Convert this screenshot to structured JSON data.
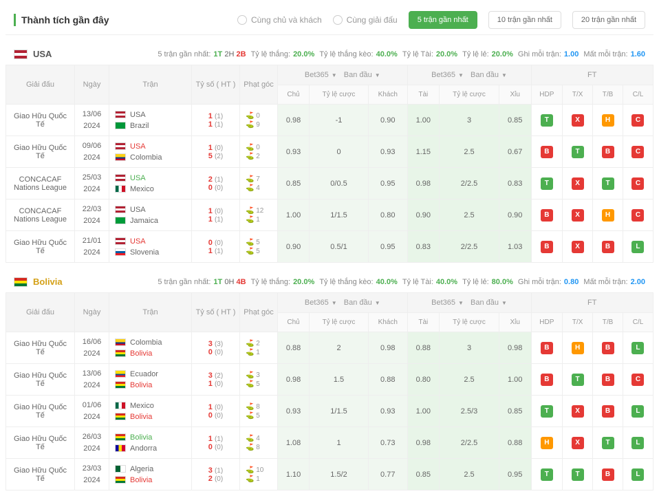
{
  "header": {
    "title": "Thành tích gần đây",
    "filter1": "Cùng chủ và khách",
    "filter2": "Cùng giải đấu",
    "tab1": "5 trận gần nhất",
    "tab2": "10 trận gần nhất",
    "tab3": "20 trận gần nhất"
  },
  "cols": {
    "league": "Giải đấu",
    "date": "Ngày",
    "match": "Trận",
    "score": "Tỷ số ( HT )",
    "corner": "Phạt góc",
    "bet365": "Bet365",
    "initial": "Ban đầu",
    "home": "Chủ",
    "odds": "Tỷ lệ cược",
    "away": "Khách",
    "over": "Tài",
    "under": "Xỉu",
    "ft": "FT",
    "hdp": "HDP",
    "tx": "T/X",
    "tb": "T/B",
    "cl": "C/L"
  },
  "usa": {
    "name": "USA",
    "statsLabel": "5 trận gần nhất:",
    "form": "1T 2H 2B",
    "winRate": "Tỷ lệ thắng:",
    "winVal": "20.0%",
    "oddsRate": "Tỷ lệ thắng kèo:",
    "oddsVal": "40.0%",
    "overRate": "Tỷ lệ Tài:",
    "overVal": "20.0%",
    "evenRate": "Tỷ lệ lẻ:",
    "evenVal": "20.0%",
    "goalsFor": "Ghi mỗi trận:",
    "goalsForVal": "1.00",
    "goalsAgainst": "Mất mỗi trận:",
    "goalsAgainstVal": "1.60",
    "matches": [
      {
        "league": "Giao Hữu Quốc Tế",
        "d1": "13/06",
        "d2": "2024",
        "t1": "USA",
        "t2": "Brazil",
        "t1h": "usa",
        "t2h": "",
        "s1": "1",
        "s2": "1",
        "ht1": "(1)",
        "ht2": "(1)",
        "c1": "0",
        "c2": "9",
        "b1": "0.98",
        "b2": "-1",
        "b3": "0.90",
        "b4": "1.00",
        "b5": "3",
        "b6": "0.85",
        "ft": [
          "T",
          "X",
          "H",
          "C"
        ],
        "fc": [
          "g",
          "r",
          "o",
          "r"
        ]
      },
      {
        "league": "Giao Hữu Quốc Tế",
        "d1": "09/06",
        "d2": "2024",
        "t1": "USA",
        "t2": "Colombia",
        "t1h": "usa-r",
        "t2h": "",
        "s1": "1",
        "s2": "5",
        "ht1": "(0)",
        "ht2": "(2)",
        "c1": "0",
        "c2": "2",
        "b1": "0.93",
        "b2": "0",
        "b3": "0.93",
        "b4": "1.15",
        "b5": "2.5",
        "b6": "0.67",
        "ft": [
          "B",
          "T",
          "B",
          "C"
        ],
        "fc": [
          "r",
          "g",
          "r",
          "r"
        ]
      },
      {
        "league": "CONCACAF Nations League",
        "d1": "25/03",
        "d2": "2024",
        "t1": "USA",
        "t2": "Mexico",
        "t1h": "usa-g",
        "t2h": "",
        "s1": "2",
        "s2": "0",
        "ht1": "(1)",
        "ht2": "(0)",
        "c1": "7",
        "c2": "4",
        "b1": "0.85",
        "b2": "0/0.5",
        "b3": "0.95",
        "b4": "0.98",
        "b5": "2/2.5",
        "b6": "0.83",
        "ft": [
          "T",
          "X",
          "T",
          "C"
        ],
        "fc": [
          "g",
          "r",
          "g",
          "r"
        ]
      },
      {
        "league": "CONCACAF Nations League",
        "d1": "22/03",
        "d2": "2024",
        "t1": "USA",
        "t2": "Jamaica",
        "t1h": "usa",
        "t2h": "",
        "s1": "1",
        "s2": "1",
        "ht1": "(0)",
        "ht2": "(1)",
        "c1": "12",
        "c2": "1",
        "b1": "1.00",
        "b2": "1/1.5",
        "b3": "0.80",
        "b4": "0.90",
        "b5": "2.5",
        "b6": "0.90",
        "ft": [
          "B",
          "X",
          "H",
          "C"
        ],
        "fc": [
          "r",
          "r",
          "o",
          "r"
        ]
      },
      {
        "league": "Giao Hữu Quốc Tế",
        "d1": "21/01",
        "d2": "2024",
        "t1": "USA",
        "t2": "Slovenia",
        "t1h": "usa-r",
        "t2h": "",
        "s1": "0",
        "s2": "1",
        "ht1": "(0)",
        "ht2": "(1)",
        "c1": "5",
        "c2": "5",
        "b1": "0.90",
        "b2": "0.5/1",
        "b3": "0.95",
        "b4": "0.83",
        "b5": "2/2.5",
        "b6": "1.03",
        "ft": [
          "B",
          "X",
          "B",
          "L"
        ],
        "fc": [
          "r",
          "r",
          "r",
          "g"
        ]
      }
    ]
  },
  "bolivia": {
    "name": "Bolivia",
    "statsLabel": "5 trận gần nhất:",
    "form": "1T 0H 4B",
    "winRate": "Tỷ lệ thắng:",
    "winVal": "20.0%",
    "oddsRate": "Tỷ lệ thắng kèo:",
    "oddsVal": "40.0%",
    "overRate": "Tỷ lệ Tài:",
    "overVal": "40.0%",
    "evenRate": "Tỷ lệ lẻ:",
    "evenVal": "80.0%",
    "goalsFor": "Ghi mỗi trận:",
    "goalsForVal": "0.80",
    "goalsAgainst": "Mất mỗi trận:",
    "goalsAgainstVal": "2.00",
    "matches": [
      {
        "league": "Giao Hữu Quốc Tế",
        "d1": "16/06",
        "d2": "2024",
        "t1": "Colombia",
        "t2": "Bolivia",
        "t2h": "bol",
        "s1": "3",
        "s2": "0",
        "ht1": "(3)",
        "ht2": "(0)",
        "c1": "2",
        "c2": "1",
        "b1": "0.88",
        "b2": "2",
        "b3": "0.98",
        "b4": "0.88",
        "b5": "3",
        "b6": "0.98",
        "ft": [
          "B",
          "H",
          "B",
          "L"
        ],
        "fc": [
          "r",
          "o",
          "r",
          "g"
        ]
      },
      {
        "league": "Giao Hữu Quốc Tế",
        "d1": "13/06",
        "d2": "2024",
        "t1": "Ecuador",
        "t2": "Bolivia",
        "t2h": "bol",
        "s1": "3",
        "s2": "1",
        "ht1": "(2)",
        "ht2": "(0)",
        "c1": "3",
        "c2": "5",
        "b1": "0.98",
        "b2": "1.5",
        "b3": "0.88",
        "b4": "0.80",
        "b5": "2.5",
        "b6": "1.00",
        "ft": [
          "B",
          "T",
          "B",
          "C"
        ],
        "fc": [
          "r",
          "g",
          "r",
          "r"
        ]
      },
      {
        "league": "Giao Hữu Quốc Tế",
        "d1": "01/06",
        "d2": "2024",
        "t1": "Mexico",
        "t2": "Bolivia",
        "t2h": "bol",
        "s1": "1",
        "s2": "0",
        "ht1": "(0)",
        "ht2": "(0)",
        "c1": "8",
        "c2": "5",
        "b1": "0.93",
        "b2": "1/1.5",
        "b3": "0.93",
        "b4": "1.00",
        "b5": "2.5/3",
        "b6": "0.85",
        "ft": [
          "T",
          "X",
          "B",
          "L"
        ],
        "fc": [
          "g",
          "r",
          "r",
          "g"
        ]
      },
      {
        "league": "Giao Hữu Quốc Tế",
        "d1": "26/03",
        "d2": "2024",
        "t1": "Bolivia",
        "t2": "Andorra",
        "t1h": "bol-g",
        "s1": "1",
        "s2": "0",
        "ht1": "(1)",
        "ht2": "(0)",
        "c1": "4",
        "c2": "8",
        "b1": "1.08",
        "b2": "1",
        "b3": "0.73",
        "b4": "0.98",
        "b5": "2/2.5",
        "b6": "0.88",
        "ft": [
          "H",
          "X",
          "T",
          "L"
        ],
        "fc": [
          "o",
          "r",
          "g",
          "g"
        ]
      },
      {
        "league": "Giao Hữu Quốc Tế",
        "d1": "23/03",
        "d2": "2024",
        "t1": "Algeria",
        "t2": "Bolivia",
        "t2h": "bol",
        "s1": "3",
        "s2": "2",
        "ht1": "(1)",
        "ht2": "(0)",
        "c1": "10",
        "c2": "1",
        "b1": "1.10",
        "b2": "1.5/2",
        "b3": "0.77",
        "b4": "0.85",
        "b5": "2.5",
        "b6": "0.95",
        "ft": [
          "T",
          "T",
          "B",
          "L"
        ],
        "fc": [
          "g",
          "g",
          "r",
          "g"
        ]
      }
    ]
  }
}
